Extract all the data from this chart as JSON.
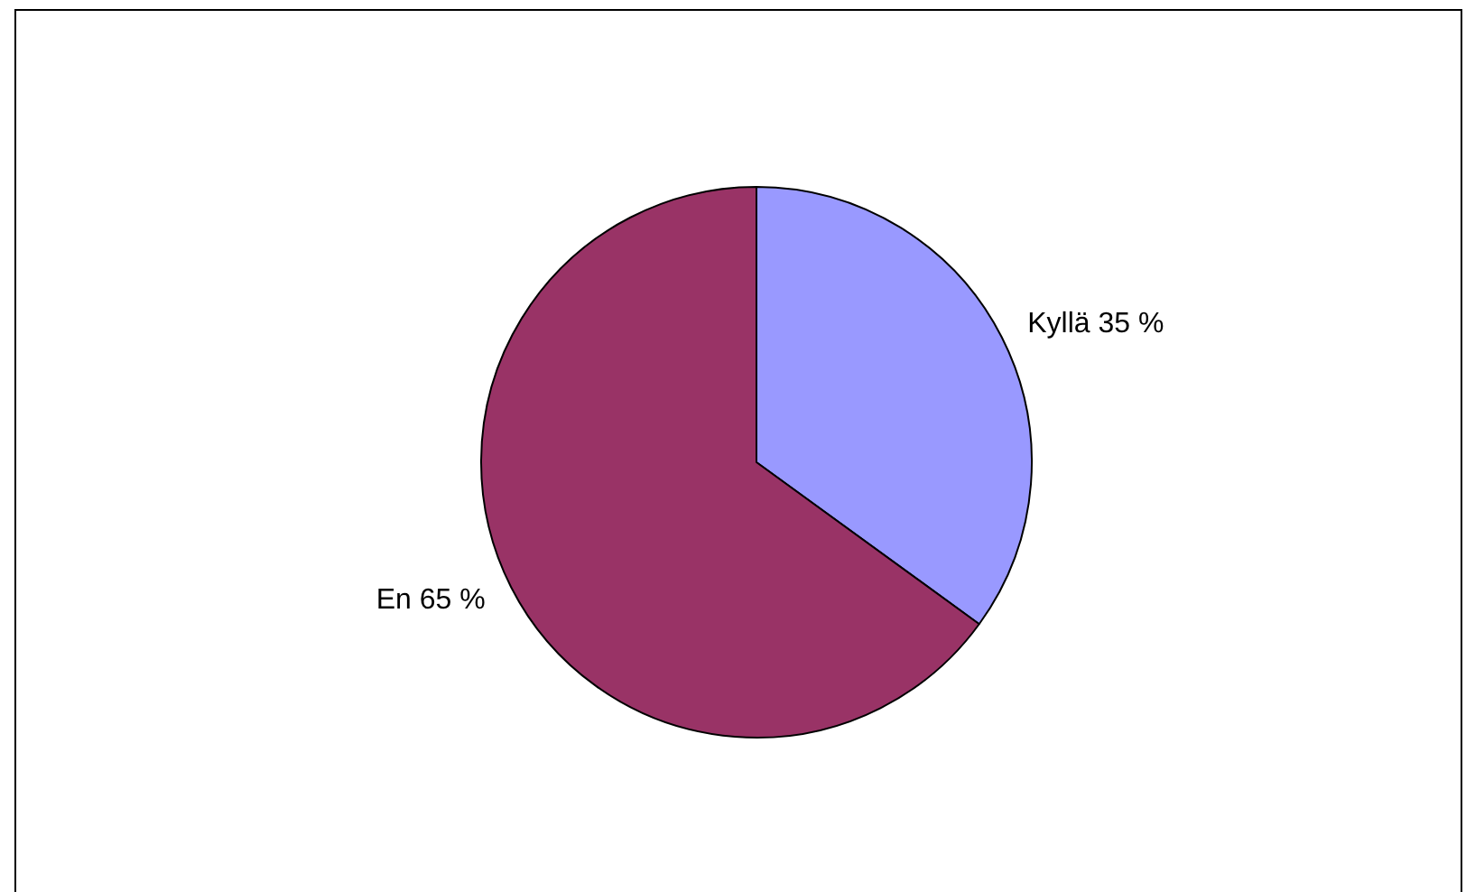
{
  "chart_data": {
    "type": "pie",
    "categories": [
      "Kyllä",
      "En"
    ],
    "values": [
      35,
      65
    ],
    "colors": [
      "#9999ff",
      "#993366"
    ],
    "value_labels": [
      "35 %",
      "65 %"
    ],
    "legend": false
  }
}
